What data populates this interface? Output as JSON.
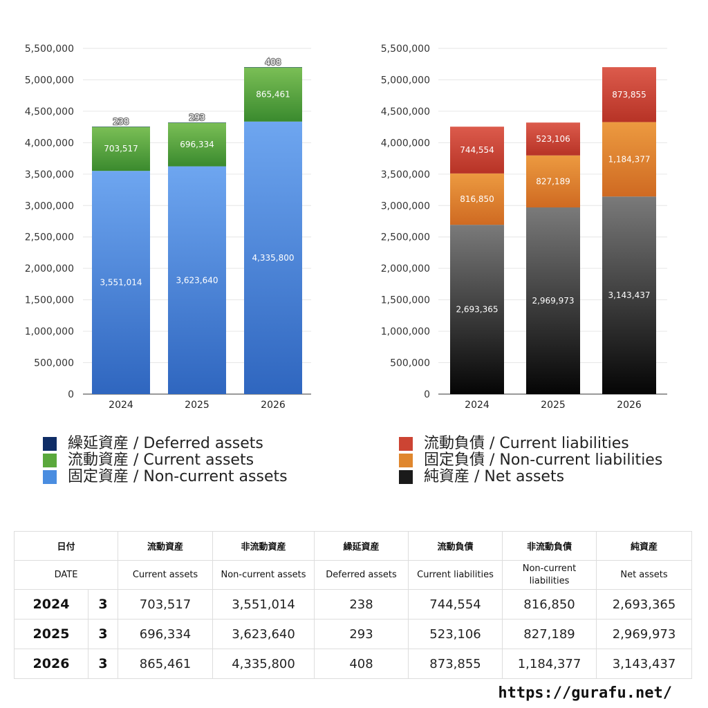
{
  "chart_data": [
    {
      "type": "bar",
      "stacked": true,
      "categories": [
        "2024",
        "2025",
        "2026"
      ],
      "ylim": [
        0,
        5500000
      ],
      "yticks": [
        "0",
        "500,000",
        "1,000,000",
        "1,500,000",
        "2,000,000",
        "2,500,000",
        "3,000,000",
        "3,500,000",
        "4,000,000",
        "4,500,000",
        "5,000,000",
        "5,500,000"
      ],
      "grid": true,
      "series": [
        {
          "name": "固定資産 / Non-current assets",
          "values": [
            3551014,
            3623640,
            4335800
          ],
          "labels": [
            "3,551,014",
            "3,623,640",
            "4,335,800"
          ],
          "color_top": "#6ea6f0",
          "color_bottom": "#2f66bf"
        },
        {
          "name": "流動資産 / Current assets",
          "values": [
            703517,
            696334,
            865461
          ],
          "labels": [
            "703,517",
            "696,334",
            "865,461"
          ],
          "color_top": "#7bbf56",
          "color_bottom": "#3a8a2e"
        },
        {
          "name": "繰延資産 / Deferred assets",
          "values": [
            238,
            293,
            408
          ],
          "labels": [
            "238",
            "293",
            "408"
          ],
          "color_top": "#1b3f80",
          "color_bottom": "#0f2a5e"
        }
      ]
    },
    {
      "type": "bar",
      "stacked": true,
      "categories": [
        "2024",
        "2025",
        "2026"
      ],
      "ylim": [
        0,
        5500000
      ],
      "yticks": [
        "0",
        "500,000",
        "1,000,000",
        "1,500,000",
        "2,000,000",
        "2,500,000",
        "3,000,000",
        "3,500,000",
        "4,000,000",
        "4,500,000",
        "5,000,000",
        "5,500,000"
      ],
      "grid": true,
      "series": [
        {
          "name": "純資産 / Net assets",
          "values": [
            2693365,
            2969973,
            3143437
          ],
          "labels": [
            "2,693,365",
            "2,969,973",
            "3,143,437"
          ],
          "color_top": "#7a7a7a",
          "color_bottom": "#050505"
        },
        {
          "name": "固定負債 / Non-current liabilities",
          "values": [
            816850,
            827189,
            1184377
          ],
          "labels": [
            "816,850",
            "827,189",
            "1,184,377"
          ],
          "color_top": "#ec9a40",
          "color_bottom": "#cf6a22"
        },
        {
          "name": "流動負債 / Current liabilities",
          "values": [
            744554,
            523106,
            873855
          ],
          "labels": [
            "744,554",
            "523,106",
            "873,855"
          ],
          "color_top": "#dc5b4c",
          "color_bottom": "#b73326"
        }
      ]
    }
  ],
  "legend_left": [
    {
      "label": "繰延資産 / Deferred assets",
      "color": "#0f2d66"
    },
    {
      "label": "流動資産 / Current assets",
      "color": "#5aa83c"
    },
    {
      "label": "固定資産 / Non-current assets",
      "color": "#4a8de0"
    }
  ],
  "legend_right": [
    {
      "label": "流動負債 / Current liabilities",
      "color": "#cc4433"
    },
    {
      "label": "固定負債 / Non-current liabilities",
      "color": "#e0872e"
    },
    {
      "label": "純資産 / Net assets",
      "color": "#1a1a1a"
    }
  ],
  "table": {
    "header_jp": [
      "日付",
      "流動資産",
      "非流動資産",
      "繰延資産",
      "流動負債",
      "非流動負債",
      "純資産"
    ],
    "header_en": [
      "DATE",
      "Current assets",
      "Non-current assets",
      "Deferred assets",
      "Current liabilities",
      "Non-current liabilities",
      "Net assets"
    ],
    "rows": [
      {
        "year": "2024",
        "month": "3",
        "cells": [
          "703,517",
          "3,551,014",
          "238",
          "744,554",
          "816,850",
          "2,693,365"
        ]
      },
      {
        "year": "2025",
        "month": "3",
        "cells": [
          "696,334",
          "3,623,640",
          "293",
          "523,106",
          "827,189",
          "2,969,973"
        ]
      },
      {
        "year": "2026",
        "month": "3",
        "cells": [
          "865,461",
          "4,335,800",
          "408",
          "873,855",
          "1,184,377",
          "3,143,437"
        ]
      }
    ]
  },
  "footer_url": "https://gurafu.net/"
}
